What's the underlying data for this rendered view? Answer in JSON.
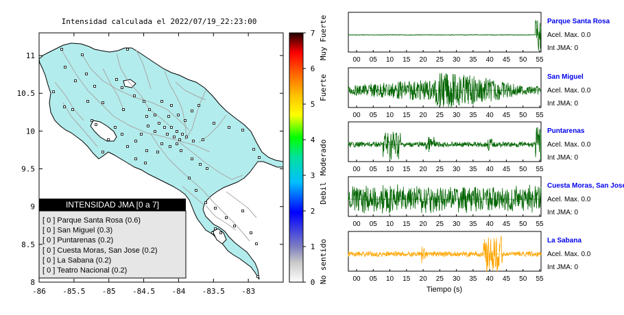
{
  "map": {
    "title": "Intensidad calculada el 2022/07/19_22:23:00",
    "x_ticks": [
      "-86",
      "-85.5",
      "-85",
      "-84.5",
      "-84",
      "-83.5",
      "-83"
    ],
    "y_ticks": [
      "11",
      "10.5",
      "10",
      "9.5",
      "9",
      "8.5",
      "8"
    ],
    "x_values": [
      -86,
      -85.5,
      -85,
      -84.5,
      -84,
      -83.5,
      -83
    ],
    "y_values": [
      11,
      10.5,
      10,
      9.5,
      9,
      8.5,
      8
    ],
    "x_range": [
      -86,
      -82.5
    ],
    "y_range": [
      8,
      11.3
    ],
    "land_color": "#b3ecec"
  },
  "colorbar": {
    "ticks": [
      "0",
      "1",
      "2",
      "3",
      "4",
      "5",
      "6",
      "7"
    ],
    "labels": [
      "No sentido",
      "Debil",
      "Moderado",
      "Fuerte",
      "Muy Fuerte"
    ]
  },
  "legend": {
    "title": "INTENSIDAD JMA [0 a 7]",
    "items": [
      "[ 0 ]  Parque Santa Rosa (0.6)",
      "[ 0 ]  San Miguel (0.3)",
      "[ 0 ]  Puntarenas (0.2)",
      "[ 0 ]  Cuesta Moras, San Jose (0.2)",
      "[ 0 ]  La Sabana (0.2)",
      "[ 0 ]  Teatro Nacional (0.2)"
    ]
  },
  "stations": [
    {
      "name": "Parque Santa Rosa",
      "accel": "Acel. Max. 0.0",
      "int": "Int JMA: 0",
      "color": "#006400"
    },
    {
      "name": "San Miguel",
      "accel": "Acel. Max. 0.0",
      "int": "Int JMA: 0",
      "color": "#006400"
    },
    {
      "name": "Puntarenas",
      "accel": "Acel. Max. 0.0",
      "int": "Int JMA: 0",
      "color": "#006400"
    },
    {
      "name": "Cuesta Moras, San Jose",
      "accel": "Acel. Max. 0.0",
      "int": "Int JMA: 0",
      "color": "#006400"
    },
    {
      "name": "La Sabana",
      "accel": "Acel. Max. 0.0",
      "int": "Int JMA: 0",
      "color": "#ffa500"
    }
  ],
  "time_ticks": [
    "00",
    "05",
    "10",
    "15",
    "20",
    "25",
    "30",
    "35",
    "40",
    "45",
    "50",
    "55"
  ],
  "time_label": "Tiempo (s)"
}
